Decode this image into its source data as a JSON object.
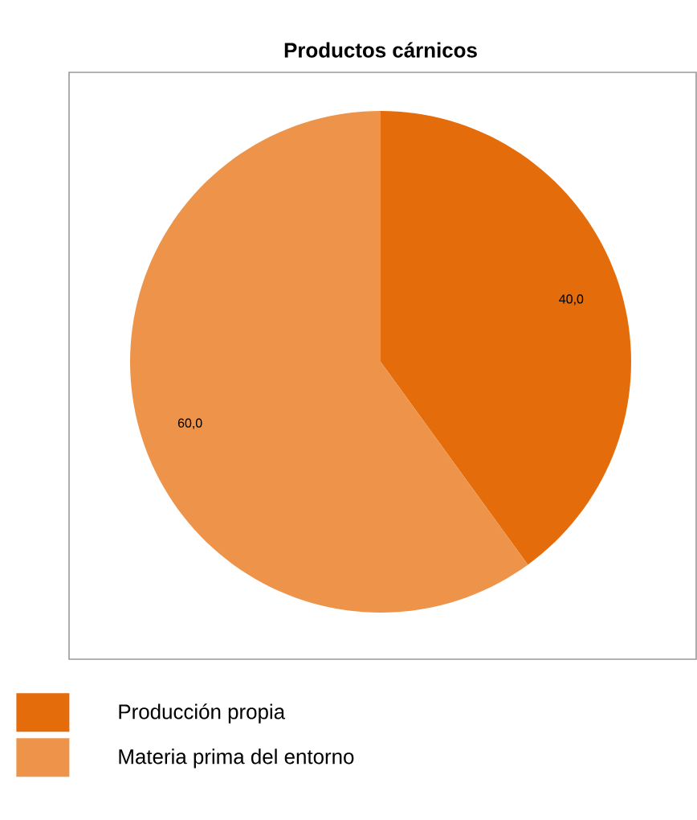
{
  "chart_data": {
    "type": "pie",
    "title": "Productos cárnicos",
    "categories": [
      "Producción propia",
      "Materia prima del entorno"
    ],
    "values": [
      40,
      60
    ],
    "colors": [
      "#e46c0a",
      "#ee944a"
    ],
    "value_labels": [
      "40,0",
      "60,0"
    ],
    "legend": "bottom left"
  }
}
